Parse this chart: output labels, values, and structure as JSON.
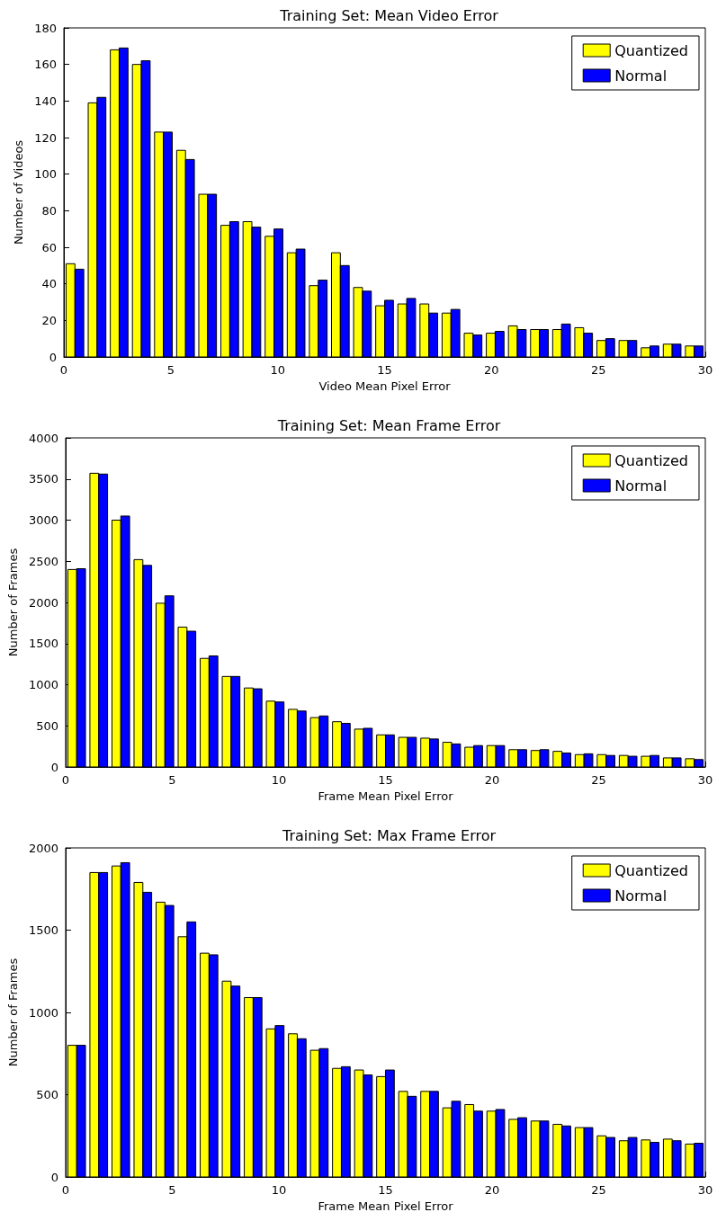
{
  "chart_data": [
    {
      "type": "histogram",
      "title": "Training Set: Mean Video Error",
      "xlabel": "Video Mean Pixel Error",
      "ylabel": "Number of Videos",
      "legend": "top right",
      "bins": [
        0,
        1.034,
        2.069,
        3.103,
        4.138,
        5.172,
        6.207,
        7.241,
        8.276,
        9.31,
        10.345,
        11.379,
        12.414,
        13.448,
        14.483,
        15.517,
        16.552,
        17.586,
        18.621,
        19.655,
        20.69,
        21.724,
        22.759,
        23.793,
        24.828,
        25.862,
        26.897,
        27.931,
        28.966,
        30
      ],
      "series": [
        {
          "name": "Quantized",
          "color": "#ffff00",
          "values": [
            51,
            139,
            168,
            160,
            123,
            113,
            89,
            72,
            74,
            66,
            57,
            39,
            57,
            38,
            28,
            29,
            29,
            24,
            13,
            13,
            17,
            15,
            15,
            16,
            9,
            9,
            5,
            7,
            6
          ]
        },
        {
          "name": "Normal",
          "color": "#0000ff",
          "values": [
            48,
            142,
            169,
            162,
            123,
            108,
            89,
            74,
            71,
            70,
            59,
            42,
            50,
            36,
            31,
            32,
            24,
            26,
            12,
            14,
            15,
            15,
            18,
            13,
            10,
            9,
            6,
            7,
            6
          ]
        }
      ],
      "xlim": [
        0,
        30
      ],
      "xticks": [
        0,
        5,
        10,
        15,
        20,
        25,
        30
      ],
      "ylim": [
        0,
        180
      ],
      "yticks": [
        0,
        20,
        40,
        60,
        80,
        100,
        120,
        140,
        160,
        180
      ]
    },
    {
      "type": "histogram",
      "title": "Training Set: Mean Frame Error",
      "xlabel": "Frame Mean Pixel Error",
      "ylabel": "Number of Frames",
      "legend": "top right",
      "bins": [
        0,
        1.034,
        2.069,
        3.103,
        4.138,
        5.172,
        6.207,
        7.241,
        8.276,
        9.31,
        10.345,
        11.379,
        12.414,
        13.448,
        14.483,
        15.517,
        16.552,
        17.586,
        18.621,
        19.655,
        20.69,
        21.724,
        22.759,
        23.793,
        24.828,
        25.862,
        26.897,
        27.931,
        28.966,
        30
      ],
      "series": [
        {
          "name": "Quantized",
          "color": "#ffff00",
          "values": [
            2400,
            3570,
            3000,
            2520,
            1990,
            1700,
            1320,
            1100,
            960,
            800,
            700,
            600,
            550,
            460,
            390,
            360,
            350,
            300,
            240,
            260,
            210,
            200,
            190,
            150,
            150,
            140,
            130,
            110,
            100
          ]
        },
        {
          "name": "Normal",
          "color": "#0000ff",
          "values": [
            2410,
            3560,
            3050,
            2450,
            2080,
            1650,
            1350,
            1100,
            950,
            790,
            680,
            620,
            530,
            470,
            390,
            360,
            340,
            280,
            260,
            260,
            210,
            210,
            170,
            160,
            140,
            130,
            140,
            110,
            90
          ]
        }
      ],
      "xlim": [
        0,
        30
      ],
      "xticks": [
        0,
        5,
        10,
        15,
        20,
        25,
        30
      ],
      "ylim": [
        0,
        4000
      ],
      "yticks": [
        0,
        500,
        1000,
        1500,
        2000,
        2500,
        3000,
        3500,
        4000
      ]
    },
    {
      "type": "histogram",
      "title": "Training Set: Max Frame Error",
      "xlabel": "Frame Mean Pixel Error",
      "ylabel": "Number of Frames",
      "legend": "top right",
      "bins": [
        0,
        1.034,
        2.069,
        3.103,
        4.138,
        5.172,
        6.207,
        7.241,
        8.276,
        9.31,
        10.345,
        11.379,
        12.414,
        13.448,
        14.483,
        15.517,
        16.552,
        17.586,
        18.621,
        19.655,
        20.69,
        21.724,
        22.759,
        23.793,
        24.828,
        25.862,
        26.897,
        27.931,
        28.966,
        30
      ],
      "series": [
        {
          "name": "Quantized",
          "color": "#ffff00",
          "values": [
            800,
            1850,
            1890,
            1790,
            1670,
            1460,
            1360,
            1190,
            1090,
            900,
            870,
            770,
            660,
            650,
            610,
            520,
            520,
            420,
            440,
            400,
            350,
            340,
            320,
            300,
            250,
            220,
            225,
            230,
            200
          ]
        },
        {
          "name": "Normal",
          "color": "#0000ff",
          "values": [
            800,
            1850,
            1910,
            1730,
            1650,
            1550,
            1350,
            1160,
            1090,
            920,
            840,
            780,
            670,
            620,
            650,
            490,
            520,
            460,
            400,
            410,
            360,
            340,
            310,
            300,
            240,
            240,
            210,
            220,
            205
          ]
        }
      ],
      "xlim": [
        0,
        30
      ],
      "xticks": [
        0,
        5,
        10,
        15,
        20,
        25,
        30
      ],
      "ylim": [
        0,
        2000
      ],
      "yticks": [
        0,
        500,
        1000,
        1500,
        2000
      ]
    }
  ]
}
